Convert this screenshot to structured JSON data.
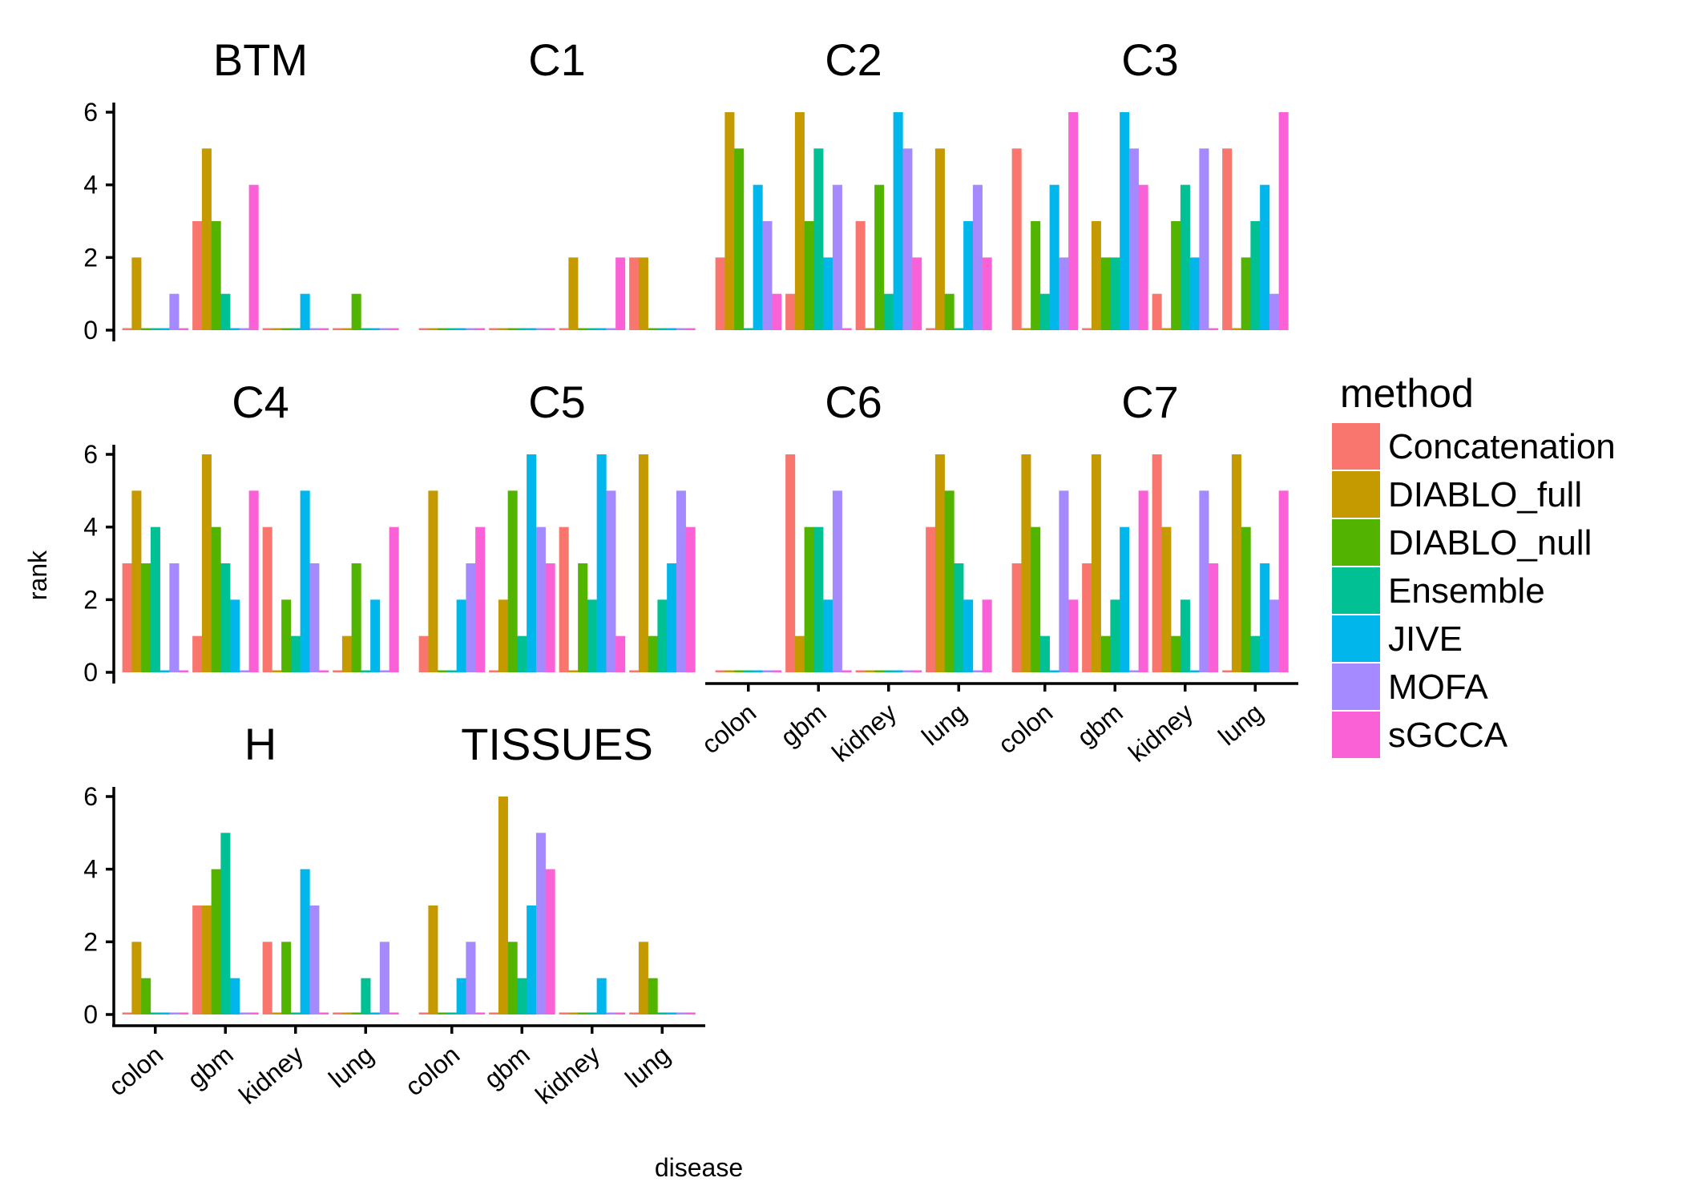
{
  "chart_data": {
    "type": "bar",
    "layout": "faceted grouped bar chart",
    "xlabel": "disease",
    "ylabel": "rank",
    "ylim": [
      0,
      6
    ],
    "yticks": [
      0,
      2,
      4,
      6
    ],
    "categories": [
      "colon",
      "gbm",
      "kidney",
      "lung"
    ],
    "legend": {
      "title": "method",
      "position": "right",
      "items": [
        {
          "name": "Concatenation",
          "color": "#F8766D"
        },
        {
          "name": "DIABLO_full",
          "color": "#C49A00"
        },
        {
          "name": "DIABLO_null",
          "color": "#53B400"
        },
        {
          "name": "Ensemble",
          "color": "#00C094"
        },
        {
          "name": "JIVE",
          "color": "#00B6EB"
        },
        {
          "name": "MOFA",
          "color": "#A58AFF"
        },
        {
          "name": "sGCCA",
          "color": "#FB61D7"
        }
      ]
    },
    "panels": [
      {
        "title": "BTM",
        "values": [
          [
            0,
            2,
            0,
            0,
            0,
            1,
            0
          ],
          [
            3,
            5,
            3,
            1,
            0,
            0,
            4
          ],
          [
            0,
            0,
            0,
            0,
            1,
            0,
            0
          ],
          [
            0,
            0,
            1,
            0,
            0,
            0,
            0
          ]
        ]
      },
      {
        "title": "C1",
        "values": [
          [
            0,
            0,
            0,
            0,
            0,
            0,
            0
          ],
          [
            0,
            0,
            0,
            0,
            0,
            0,
            0
          ],
          [
            0,
            2,
            0,
            0,
            0,
            0,
            2
          ],
          [
            2,
            2,
            0,
            0,
            0,
            0,
            0
          ]
        ]
      },
      {
        "title": "C2",
        "values": [
          [
            2,
            6,
            5,
            0,
            4,
            3,
            1
          ],
          [
            1,
            6,
            3,
            5,
            2,
            4,
            0
          ],
          [
            3,
            0,
            4,
            1,
            6,
            5,
            2
          ],
          [
            0,
            5,
            1,
            0,
            3,
            4,
            2
          ]
        ]
      },
      {
        "title": "C3",
        "values": [
          [
            5,
            0,
            3,
            1,
            4,
            2,
            6
          ],
          [
            0,
            3,
            2,
            2,
            6,
            5,
            4
          ],
          [
            1,
            0,
            3,
            4,
            2,
            5,
            0
          ],
          [
            5,
            0,
            2,
            3,
            4,
            1,
            6
          ]
        ]
      },
      {
        "title": "C4",
        "values": [
          [
            3,
            5,
            3,
            4,
            0,
            3,
            0
          ],
          [
            1,
            6,
            4,
            3,
            2,
            0,
            5
          ],
          [
            4,
            0,
            2,
            1,
            5,
            3,
            0
          ],
          [
            0,
            1,
            3,
            0,
            2,
            0,
            4
          ]
        ]
      },
      {
        "title": "C5",
        "values": [
          [
            1,
            5,
            0,
            0,
            2,
            3,
            4
          ],
          [
            0,
            2,
            5,
            1,
            6,
            4,
            3
          ],
          [
            4,
            0,
            3,
            2,
            6,
            5,
            1
          ],
          [
            0,
            6,
            1,
            2,
            3,
            5,
            4
          ]
        ]
      },
      {
        "title": "C6",
        "values": [
          [
            0,
            0,
            0,
            0,
            0,
            0,
            0
          ],
          [
            6,
            1,
            4,
            4,
            2,
            5,
            0
          ],
          [
            0,
            0,
            0,
            0,
            0,
            0,
            0
          ],
          [
            4,
            6,
            5,
            3,
            2,
            0,
            2
          ]
        ]
      },
      {
        "title": "C7",
        "values": [
          [
            3,
            6,
            4,
            1,
            0,
            5,
            2
          ],
          [
            3,
            6,
            1,
            2,
            4,
            0,
            5
          ],
          [
            6,
            4,
            1,
            2,
            0,
            5,
            3
          ],
          [
            0,
            6,
            4,
            1,
            3,
            2,
            5
          ]
        ]
      },
      {
        "title": "H",
        "values": [
          [
            0,
            2,
            1,
            0,
            0,
            0,
            0
          ],
          [
            3,
            3,
            4,
            5,
            1,
            0,
            0
          ],
          [
            2,
            0,
            2,
            0,
            4,
            3,
            0
          ],
          [
            0,
            0,
            0,
            1,
            0,
            2,
            0
          ]
        ]
      },
      {
        "title": "TISSUES",
        "values": [
          [
            0,
            3,
            0,
            0,
            1,
            2,
            0
          ],
          [
            0,
            6,
            2,
            1,
            3,
            5,
            4
          ],
          [
            0,
            0,
            0,
            0,
            1,
            0,
            0
          ],
          [
            0,
            2,
            1,
            0,
            0,
            0,
            0
          ]
        ]
      }
    ]
  }
}
